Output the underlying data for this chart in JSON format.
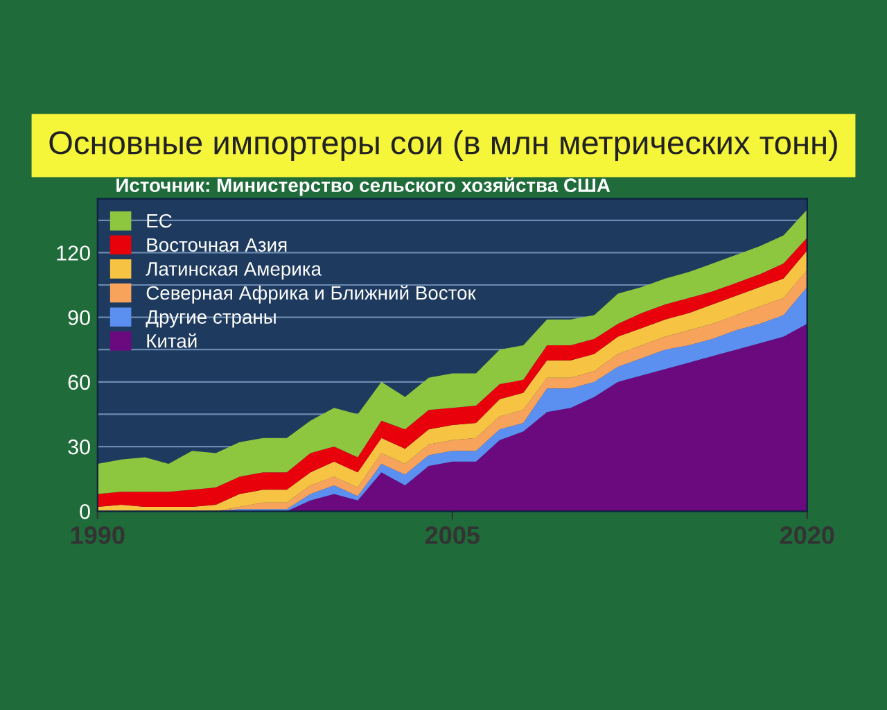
{
  "chart_data": {
    "type": "area",
    "stacked": true,
    "title": "Основные импортеры сои (в млн метрических тонн)",
    "subtitle": "Источник: Министерство сельского хозяйства США",
    "x": [
      1990,
      1991,
      1992,
      1993,
      1994,
      1995,
      1996,
      1997,
      1998,
      1999,
      2000,
      2001,
      2002,
      2003,
      2004,
      2005,
      2006,
      2007,
      2008,
      2009,
      2010,
      2011,
      2012,
      2013,
      2014,
      2015,
      2016,
      2017,
      2018,
      2019,
      2020
    ],
    "series": [
      {
        "name": "Китай",
        "color": "#6a0a7e",
        "values": [
          0,
          0,
          0,
          0,
          0,
          0,
          0,
          0,
          0,
          5,
          8,
          5,
          18,
          12,
          21,
          23,
          23,
          33,
          37,
          46,
          48,
          53,
          60,
          63,
          66,
          69,
          72,
          75,
          78,
          81,
          87
        ]
      },
      {
        "name": "Другие страны",
        "color": "#5b8ff0",
        "values": [
          0,
          0,
          0,
          0,
          0,
          0,
          1,
          1,
          1,
          3,
          4,
          2,
          4,
          5,
          5,
          5,
          5,
          5,
          4,
          11,
          9,
          7,
          7,
          8,
          9,
          8,
          8,
          9,
          9,
          10,
          17
        ]
      },
      {
        "name": "Северная Африка и Ближний Восток",
        "color": "#f7a35c",
        "values": [
          0,
          0,
          0,
          0,
          0,
          0,
          1,
          3,
          3,
          4,
          4,
          4,
          5,
          5,
          5,
          5,
          6,
          6,
          6,
          5,
          5,
          5,
          6,
          6,
          6,
          7,
          7,
          7,
          8,
          8,
          8
        ]
      },
      {
        "name": "Латинская Америка",
        "color": "#f6c342",
        "values": [
          2,
          3,
          2,
          2,
          2,
          3,
          6,
          6,
          6,
          6,
          7,
          7,
          7,
          7,
          7,
          7,
          7,
          8,
          8,
          8,
          8,
          8,
          8,
          8,
          8,
          8,
          9,
          9,
          9,
          9,
          9
        ]
      },
      {
        "name": "Восточная Азия",
        "color": "#e8000a",
        "values": [
          6,
          6,
          7,
          7,
          8,
          8,
          8,
          8,
          8,
          9,
          7,
          7,
          8,
          9,
          9,
          8,
          8,
          7,
          6,
          7,
          7,
          7,
          6,
          7,
          7,
          7,
          6,
          6,
          6,
          7,
          6
        ]
      },
      {
        "name": "ЕС",
        "color": "#8dc63f",
        "values": [
          14,
          15,
          16,
          13,
          18,
          16,
          16,
          16,
          16,
          15,
          18,
          20,
          18,
          15,
          15,
          16,
          15,
          16,
          16,
          12,
          12,
          11,
          14,
          12,
          12,
          12,
          13,
          13,
          13,
          13,
          13
        ]
      }
    ],
    "xlim": [
      1990,
      2020
    ],
    "xticks": [
      1990,
      2005,
      2020
    ],
    "ylim": [
      0,
      145
    ],
    "yticks": [
      0,
      {
        "value": 15,
        "label": null
      },
      30,
      {
        "value": 45,
        "label": null
      },
      60,
      {
        "value": 75,
        "label": null
      },
      90,
      {
        "value": 105,
        "label": null
      },
      120,
      {
        "value": 135,
        "label": null
      }
    ],
    "grid": "y",
    "legend": "top left"
  }
}
